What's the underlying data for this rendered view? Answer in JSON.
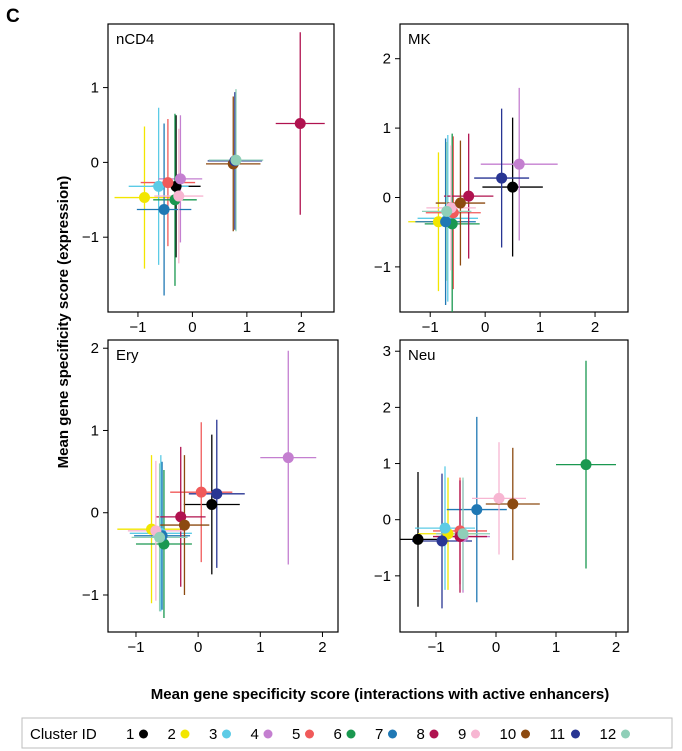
{
  "panel_label": "C",
  "ylabel": "Mean gene specificity score (expression)",
  "xlabel": "Mean gene specificity score (interactions with active enhancers)",
  "legend": {
    "title": "Cluster ID",
    "items": [
      {
        "label": "1",
        "color": "#000000"
      },
      {
        "label": "2",
        "color": "#f2e600"
      },
      {
        "label": "3",
        "color": "#5ccbe6"
      },
      {
        "label": "4",
        "color": "#c47fd0"
      },
      {
        "label": "5",
        "color": "#f05a5a"
      },
      {
        "label": "6",
        "color": "#1a9850"
      },
      {
        "label": "7",
        "color": "#1f78b4"
      },
      {
        "label": "8",
        "color": "#b0124f"
      },
      {
        "label": "9",
        "color": "#f7b6d2"
      },
      {
        "label": "10",
        "color": "#8c4a10"
      },
      {
        "label": "11",
        "color": "#283593"
      },
      {
        "label": "12",
        "color": "#8fcfb8"
      }
    ]
  },
  "chart_data": [
    {
      "type": "scatter",
      "title": "nCD4",
      "xlim": [
        -1.55,
        2.6
      ],
      "ylim": [
        -2.0,
        1.85
      ],
      "xticks": [
        -1,
        0,
        1,
        2
      ],
      "yticks": [
        -1,
        0,
        1
      ],
      "points": [
        {
          "cluster": "1",
          "x": -0.3,
          "y": -0.32,
          "xerr": 0.45,
          "yerr": 0.95
        },
        {
          "cluster": "2",
          "x": -0.88,
          "y": -0.47,
          "xerr": 0.55,
          "yerr": 0.95
        },
        {
          "cluster": "3",
          "x": -0.62,
          "y": -0.32,
          "xerr": 0.55,
          "yerr": 1.05
        },
        {
          "cluster": "4",
          "x": -0.22,
          "y": -0.22,
          "xerr": 0.4,
          "yerr": 0.85
        },
        {
          "cluster": "5",
          "x": -0.45,
          "y": -0.27,
          "xerr": 0.5,
          "yerr": 0.85
        },
        {
          "cluster": "6",
          "x": -0.32,
          "y": -0.5,
          "xerr": 0.4,
          "yerr": 1.15
        },
        {
          "cluster": "7",
          "x": -0.52,
          "y": -0.63,
          "xerr": 0.5,
          "yerr": 1.15
        },
        {
          "cluster": "8",
          "x": 1.98,
          "y": 0.52,
          "xerr": 0.45,
          "yerr": 1.22
        },
        {
          "cluster": "9",
          "x": -0.25,
          "y": -0.45,
          "xerr": 0.45,
          "yerr": 0.9
        },
        {
          "cluster": "10",
          "x": 0.75,
          "y": -0.02,
          "xerr": 0.5,
          "yerr": 0.9
        },
        {
          "cluster": "11",
          "x": 0.78,
          "y": 0.02,
          "xerr": 0.5,
          "yerr": 0.92
        },
        {
          "cluster": "12",
          "x": 0.8,
          "y": 0.03,
          "xerr": 0.5,
          "yerr": 0.95
        }
      ]
    },
    {
      "type": "scatter",
      "title": "MK",
      "xlim": [
        -1.55,
        2.6
      ],
      "ylim": [
        -1.65,
        2.5
      ],
      "xticks": [
        -1,
        0,
        1,
        2
      ],
      "yticks": [
        -1,
        0,
        1,
        2
      ],
      "points": [
        {
          "cluster": "1",
          "x": 0.5,
          "y": 0.15,
          "xerr": 0.55,
          "yerr": 1.0
        },
        {
          "cluster": "2",
          "x": -0.85,
          "y": -0.35,
          "xerr": 0.55,
          "yerr": 1.0
        },
        {
          "cluster": "3",
          "x": -0.68,
          "y": -0.3,
          "xerr": 0.55,
          "yerr": 1.2
        },
        {
          "cluster": "4",
          "x": 0.62,
          "y": 0.48,
          "xerr": 0.7,
          "yerr": 1.1
        },
        {
          "cluster": "5",
          "x": -0.58,
          "y": -0.22,
          "xerr": 0.5,
          "yerr": 1.1
        },
        {
          "cluster": "6",
          "x": -0.6,
          "y": -0.38,
          "xerr": 0.5,
          "yerr": 1.3
        },
        {
          "cluster": "7",
          "x": -0.72,
          "y": -0.35,
          "xerr": 0.55,
          "yerr": 1.2
        },
        {
          "cluster": "8",
          "x": -0.3,
          "y": 0.02,
          "xerr": 0.45,
          "yerr": 0.9
        },
        {
          "cluster": "9",
          "x": -0.62,
          "y": -0.15,
          "xerr": 0.45,
          "yerr": 0.9
        },
        {
          "cluster": "10",
          "x": -0.45,
          "y": -0.08,
          "xerr": 0.45,
          "yerr": 0.9
        },
        {
          "cluster": "11",
          "x": 0.3,
          "y": 0.28,
          "xerr": 0.5,
          "yerr": 1.0
        },
        {
          "cluster": "12",
          "x": -0.7,
          "y": -0.2,
          "xerr": 0.45,
          "yerr": 1.0
        }
      ]
    },
    {
      "type": "scatter",
      "title": "Ery",
      "xlim": [
        -1.45,
        2.25
      ],
      "ylim": [
        -1.45,
        2.1
      ],
      "xticks": [
        -1,
        0,
        1,
        2
      ],
      "yticks": [
        -1,
        0,
        1,
        2
      ],
      "points": [
        {
          "cluster": "1",
          "x": 0.22,
          "y": 0.1,
          "xerr": 0.45,
          "yerr": 0.85
        },
        {
          "cluster": "2",
          "x": -0.75,
          "y": -0.2,
          "xerr": 0.55,
          "yerr": 0.9
        },
        {
          "cluster": "3",
          "x": -0.6,
          "y": -0.25,
          "xerr": 0.5,
          "yerr": 0.95
        },
        {
          "cluster": "4",
          "x": 1.45,
          "y": 0.67,
          "xerr": 0.45,
          "yerr": 1.3
        },
        {
          "cluster": "5",
          "x": 0.05,
          "y": 0.25,
          "xerr": 0.5,
          "yerr": 0.85
        },
        {
          "cluster": "6",
          "x": -0.55,
          "y": -0.38,
          "xerr": 0.45,
          "yerr": 0.9
        },
        {
          "cluster": "7",
          "x": -0.58,
          "y": -0.28,
          "xerr": 0.45,
          "yerr": 0.9
        },
        {
          "cluster": "8",
          "x": -0.28,
          "y": -0.05,
          "xerr": 0.4,
          "yerr": 0.85
        },
        {
          "cluster": "9",
          "x": -0.68,
          "y": -0.22,
          "xerr": 0.45,
          "yerr": 0.85
        },
        {
          "cluster": "10",
          "x": -0.22,
          "y": -0.15,
          "xerr": 0.4,
          "yerr": 0.85
        },
        {
          "cluster": "11",
          "x": 0.3,
          "y": 0.23,
          "xerr": 0.45,
          "yerr": 0.9
        },
        {
          "cluster": "12",
          "x": -0.62,
          "y": -0.3,
          "xerr": 0.45,
          "yerr": 0.9
        }
      ]
    },
    {
      "type": "scatter",
      "title": "Neu",
      "xlim": [
        -1.6,
        2.2
      ],
      "ylim": [
        -2.0,
        3.2
      ],
      "xticks": [
        -1,
        0,
        1,
        2
      ],
      "yticks": [
        -1,
        0,
        1,
        2,
        3
      ],
      "points": [
        {
          "cluster": "1",
          "x": -1.3,
          "y": -0.35,
          "xerr": 0.45,
          "yerr": 1.2
        },
        {
          "cluster": "2",
          "x": -0.8,
          "y": -0.25,
          "xerr": 0.5,
          "yerr": 1.0
        },
        {
          "cluster": "3",
          "x": -0.85,
          "y": -0.15,
          "xerr": 0.5,
          "yerr": 1.1
        },
        {
          "cluster": "4",
          "x": -0.55,
          "y": -0.3,
          "xerr": 0.45,
          "yerr": 1.0
        },
        {
          "cluster": "5",
          "x": -0.6,
          "y": -0.2,
          "xerr": 0.45,
          "yerr": 0.95
        },
        {
          "cluster": "6",
          "x": 1.5,
          "y": 0.98,
          "xerr": 0.5,
          "yerr": 1.85
        },
        {
          "cluster": "7",
          "x": -0.32,
          "y": 0.18,
          "xerr": 0.5,
          "yerr": 1.65
        },
        {
          "cluster": "8",
          "x": -0.6,
          "y": -0.3,
          "xerr": 0.45,
          "yerr": 1.0
        },
        {
          "cluster": "9",
          "x": 0.05,
          "y": 0.38,
          "xerr": 0.45,
          "yerr": 1.0
        },
        {
          "cluster": "10",
          "x": 0.28,
          "y": 0.28,
          "xerr": 0.45,
          "yerr": 1.0
        },
        {
          "cluster": "11",
          "x": -0.9,
          "y": -0.38,
          "xerr": 0.5,
          "yerr": 1.2
        },
        {
          "cluster": "12",
          "x": -0.55,
          "y": -0.25,
          "xerr": 0.45,
          "yerr": 1.0
        }
      ]
    }
  ]
}
